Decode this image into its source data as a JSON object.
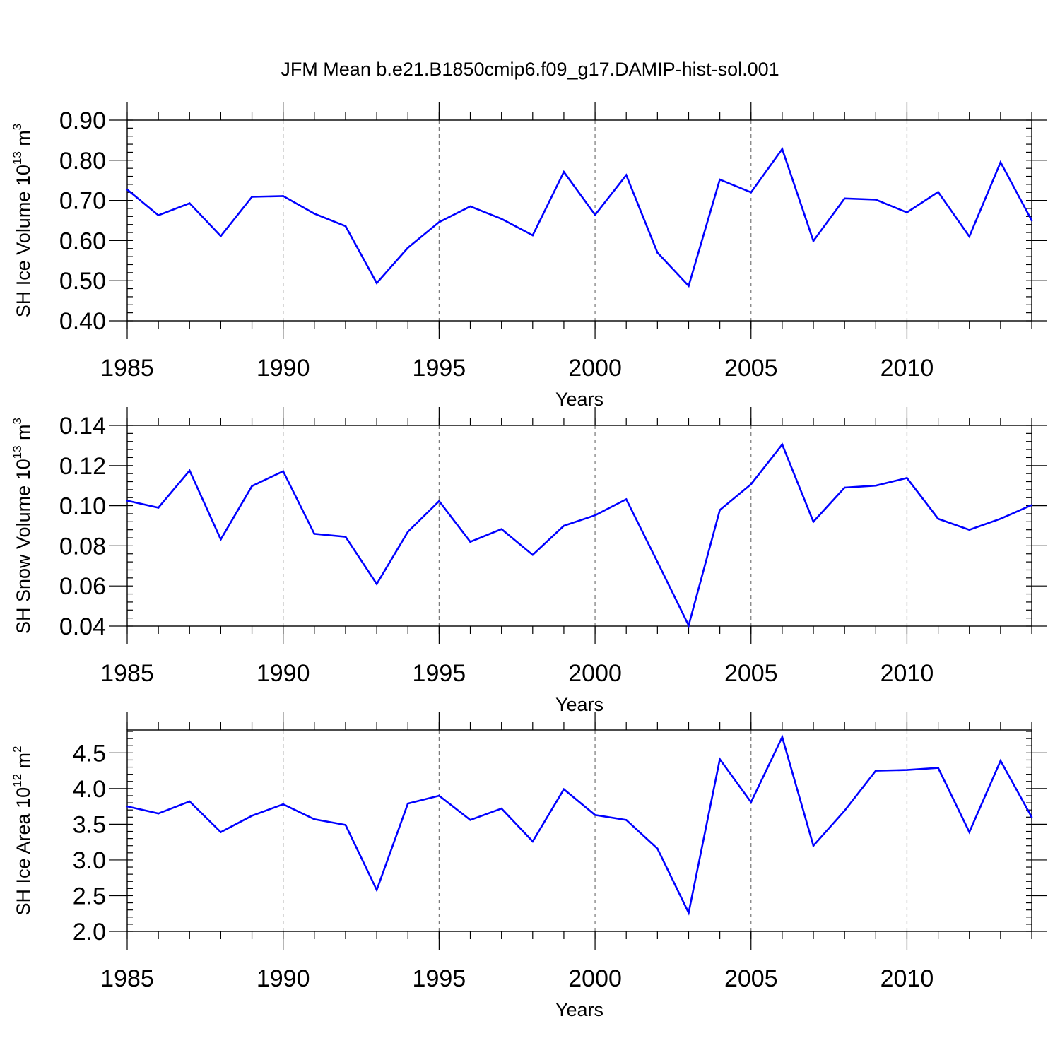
{
  "title": "JFM Mean b.e21.B1850cmip6.f09_g17.DAMIP-hist-sol.001",
  "line_color": "#0000ff",
  "chart_data": [
    {
      "type": "line",
      "xlabel": "Years",
      "ylabel": "SH Ice Volume 10",
      "ylabel_exp": "13",
      "ylabel_unit": " m",
      "ylabel_unit_exp": "3",
      "xlim": [
        1985,
        2014
      ],
      "ylim": [
        0.4,
        0.9
      ],
      "yticks": [
        0.4,
        0.5,
        0.6,
        0.7,
        0.8,
        0.9
      ],
      "ytick_labels": [
        "0.40",
        "0.50",
        "0.60",
        "0.70",
        "0.80",
        "0.90"
      ],
      "yminor_step": 0.02,
      "xticks": [
        1985,
        1990,
        1995,
        2000,
        2005,
        2010
      ],
      "xtick_labels": [
        "1985",
        "1990",
        "1995",
        "2000",
        "2005",
        "2010"
      ],
      "grid_x": [
        1990,
        1995,
        2000,
        2005,
        2010
      ],
      "x": [
        1985,
        1986,
        1987,
        1988,
        1989,
        1990,
        1991,
        1992,
        1993,
        1994,
        1995,
        1996,
        1997,
        1998,
        1999,
        2000,
        2001,
        2002,
        2003,
        2004,
        2005,
        2006,
        2007,
        2008,
        2009,
        2010,
        2011,
        2012,
        2013,
        2014
      ],
      "y": [
        0.727,
        0.663,
        0.693,
        0.611,
        0.709,
        0.711,
        0.667,
        0.636,
        0.494,
        0.582,
        0.646,
        0.685,
        0.654,
        0.613,
        0.771,
        0.664,
        0.763,
        0.57,
        0.487,
        0.752,
        0.72,
        0.828,
        0.599,
        0.705,
        0.702,
        0.67,
        0.721,
        0.61,
        0.795,
        0.65
      ]
    },
    {
      "type": "line",
      "xlabel": "Years",
      "ylabel": "SH Snow Volume 10",
      "ylabel_exp": "13",
      "ylabel_unit": " m",
      "ylabel_unit_exp": "3",
      "xlim": [
        1985,
        2014
      ],
      "ylim": [
        0.04,
        0.14
      ],
      "yticks": [
        0.04,
        0.06,
        0.08,
        0.1,
        0.12,
        0.14
      ],
      "ytick_labels": [
        "0.04",
        "0.06",
        "0.08",
        "0.10",
        "0.12",
        "0.14"
      ],
      "yminor_step": 0.004,
      "xticks": [
        1985,
        1990,
        1995,
        2000,
        2005,
        2010
      ],
      "xtick_labels": [
        "1985",
        "1990",
        "1995",
        "2000",
        "2005",
        "2010"
      ],
      "grid_x": [
        1990,
        1995,
        2000,
        2005,
        2010
      ],
      "x": [
        1985,
        1986,
        1987,
        1988,
        1989,
        1990,
        1991,
        1992,
        1993,
        1994,
        1995,
        1996,
        1997,
        1998,
        1999,
        2000,
        2001,
        2002,
        2003,
        2004,
        2005,
        2006,
        2007,
        2008,
        2009,
        2010,
        2011,
        2012,
        2013,
        2014
      ],
      "y": [
        0.1025,
        0.099,
        0.1175,
        0.0832,
        0.1098,
        0.1172,
        0.086,
        0.0845,
        0.061,
        0.087,
        0.1023,
        0.082,
        0.0883,
        0.0755,
        0.09,
        0.0952,
        0.1032,
        0.072,
        0.0403,
        0.0978,
        0.1107,
        0.1305,
        0.092,
        0.109,
        0.11,
        0.1138,
        0.0935,
        0.088,
        0.0935,
        0.1003
      ]
    },
    {
      "type": "line",
      "xlabel": "Years",
      "ylabel": "SH Ice Area 10",
      "ylabel_exp": "12",
      "ylabel_unit": " m",
      "ylabel_unit_exp": "2",
      "xlim": [
        1985,
        2014
      ],
      "ylim": [
        2.0,
        4.82
      ],
      "yticks": [
        2.0,
        2.5,
        3.0,
        3.5,
        4.0,
        4.5
      ],
      "ytick_labels": [
        "2.0",
        "2.5",
        "3.0",
        "3.5",
        "4.0",
        "4.5"
      ],
      "yminor_step": 0.1,
      "xticks": [
        1985,
        1990,
        1995,
        2000,
        2005,
        2010
      ],
      "xtick_labels": [
        "1985",
        "1990",
        "1995",
        "2000",
        "2005",
        "2010"
      ],
      "grid_x": [
        1990,
        1995,
        2000,
        2005,
        2010
      ],
      "x": [
        1985,
        1986,
        1987,
        1988,
        1989,
        1990,
        1991,
        1992,
        1993,
        1994,
        1995,
        1996,
        1997,
        1998,
        1999,
        2000,
        2001,
        2002,
        2003,
        2004,
        2005,
        2006,
        2007,
        2008,
        2009,
        2010,
        2011,
        2012,
        2013,
        2014
      ],
      "y": [
        3.75,
        3.65,
        3.82,
        3.39,
        3.62,
        3.78,
        3.57,
        3.49,
        2.58,
        3.79,
        3.9,
        3.56,
        3.72,
        3.26,
        3.99,
        3.63,
        3.56,
        3.16,
        2.26,
        4.41,
        3.81,
        4.72,
        3.2,
        3.69,
        4.25,
        4.26,
        4.29,
        3.39,
        4.39,
        3.6
      ]
    }
  ]
}
